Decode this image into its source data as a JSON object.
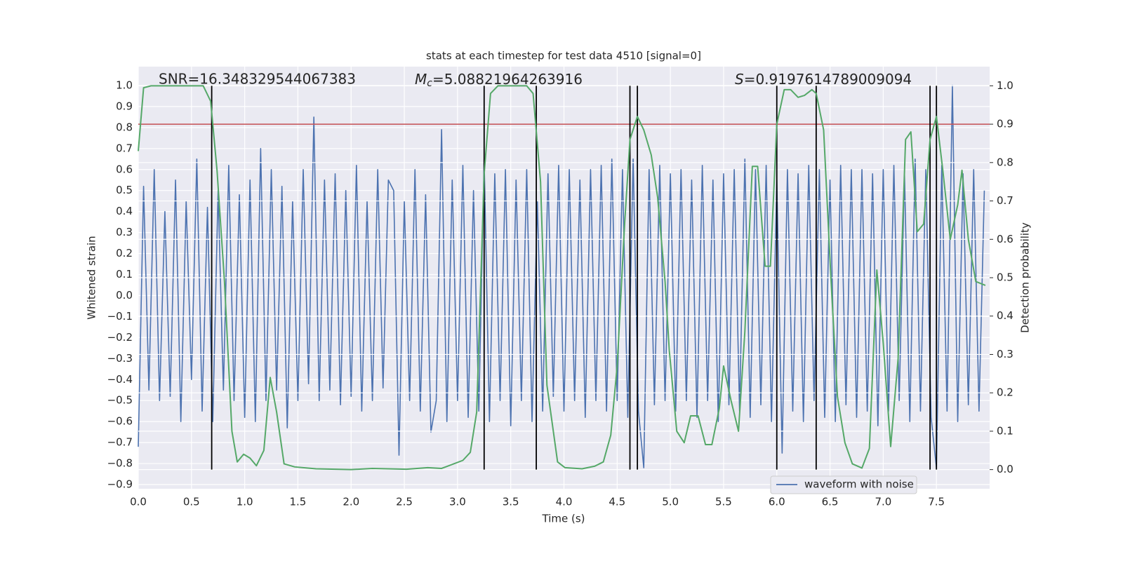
{
  "chart_data": {
    "type": "line",
    "title": "stats at each timestep for test data 4510 [signal=0]",
    "xlabel": "Time (s)",
    "ylabel": "Whitened strain",
    "y2label": "Detection probability",
    "annotations": [
      {
        "text": "SNR=16.348329544067383"
      },
      {
        "symbol": "M",
        "subscript": "c",
        "text": "=5.08821964263916"
      },
      {
        "symbol": "S",
        "text": "=0.9197614789009094"
      }
    ],
    "xlim": [
      0,
      8
    ],
    "ylim": [
      -0.92,
      1.09
    ],
    "y2lim": [
      -0.05,
      1.05
    ],
    "xticks": [
      {
        "value": 0,
        "label": "0.0"
      },
      0.5,
      {
        "value": 1,
        "label": "1.0"
      },
      1.5,
      {
        "value": 2,
        "label": "2.0"
      },
      2.5,
      {
        "value": 3,
        "label": "3.0"
      },
      3.5,
      {
        "value": 4,
        "label": "4.0"
      },
      4.5,
      {
        "value": 5,
        "label": "5.0"
      },
      5.5,
      {
        "value": 6,
        "label": "6.0"
      },
      6.5,
      {
        "value": 7,
        "label": "7.0"
      },
      7.5
    ],
    "yticks": [
      {
        "value": -0.9,
        "label": "−0.9"
      },
      {
        "value": -0.8,
        "label": "−0.8"
      },
      {
        "value": -0.7,
        "label": "−0.7"
      },
      {
        "value": -0.6,
        "label": "−0.6"
      },
      {
        "value": -0.5,
        "label": "−0.5"
      },
      {
        "value": -0.4,
        "label": "−0.4"
      },
      {
        "value": -0.3,
        "label": "−0.3"
      },
      {
        "value": -0.2,
        "label": "−0.2"
      },
      {
        "value": -0.1,
        "label": "−0.1"
      },
      {
        "value": 0,
        "label": "0.0"
      },
      0.1,
      0.2,
      0.3,
      0.4,
      0.5,
      0.6,
      0.7,
      0.8,
      0.9,
      {
        "value": 1,
        "label": "1.0"
      }
    ],
    "y2ticks": [
      {
        "value": 0,
        "label": "0.0"
      },
      0.1,
      0.2,
      0.3,
      0.4,
      0.5,
      0.6,
      0.7,
      0.8,
      0.9,
      {
        "value": 1,
        "label": "1.0"
      }
    ],
    "grid": true,
    "legend": "lower right",
    "series": [
      {
        "name": "waveform with noise",
        "color": "#4c72b0",
        "x": [
          0,
          0.05,
          0.1,
          0.15,
          0.2,
          0.25,
          0.3,
          0.35,
          0.4,
          0.45,
          0.5,
          0.55,
          0.6,
          0.65,
          0.7,
          0.75,
          0.8,
          0.85,
          0.9,
          0.95,
          1,
          1.05,
          1.1,
          1.15,
          1.2,
          1.25,
          1.3,
          1.35,
          1.4,
          1.45,
          1.5,
          1.55,
          1.6,
          1.65,
          1.7,
          1.75,
          1.8,
          1.85,
          1.9,
          1.95,
          2,
          2.05,
          2.1,
          2.15,
          2.2,
          2.25,
          2.3,
          2.35,
          2.4,
          2.45,
          2.5,
          2.55,
          2.6,
          2.65,
          2.7,
          2.75,
          2.8,
          2.85,
          2.9,
          2.95,
          3,
          3.05,
          3.1,
          3.15,
          3.2,
          3.25,
          3.3,
          3.35,
          3.4,
          3.45,
          3.5,
          3.55,
          3.6,
          3.65,
          3.7,
          3.75,
          3.8,
          3.85,
          3.9,
          3.95,
          4,
          4.05,
          4.1,
          4.15,
          4.2,
          4.25,
          4.3,
          4.35,
          4.4,
          4.45,
          4.5,
          4.55,
          4.6,
          4.65,
          4.7,
          4.75,
          4.8,
          4.85,
          4.9,
          4.95,
          5,
          5.05,
          5.1,
          5.15,
          5.2,
          5.25,
          5.3,
          5.35,
          5.4,
          5.45,
          5.5,
          5.55,
          5.6,
          5.65,
          5.7,
          5.75,
          5.8,
          5.85,
          5.9,
          5.95,
          6,
          6.05,
          6.1,
          6.15,
          6.2,
          6.25,
          6.3,
          6.35,
          6.4,
          6.45,
          6.5,
          6.55,
          6.6,
          6.65,
          6.7,
          6.75,
          6.8,
          6.85,
          6.9,
          6.95,
          7,
          7.05,
          7.1,
          7.15,
          7.2,
          7.25,
          7.3,
          7.35,
          7.4,
          7.45,
          7.5,
          7.55,
          7.6,
          7.65,
          7.7,
          7.75,
          7.8,
          7.85,
          7.9,
          7.95
        ],
        "values": [
          -0.72,
          0.52,
          -0.45,
          0.6,
          -0.5,
          0.4,
          -0.48,
          0.55,
          -0.6,
          0.45,
          -0.4,
          0.65,
          -0.55,
          0.42,
          -0.6,
          0.5,
          -0.45,
          0.62,
          -0.5,
          0.48,
          -0.58,
          0.55,
          -0.6,
          0.7,
          -0.5,
          0.6,
          -0.45,
          0.52,
          -0.63,
          0.45,
          -0.5,
          0.6,
          -0.42,
          0.85,
          -0.5,
          0.55,
          -0.45,
          0.58,
          -0.52,
          0.5,
          -0.48,
          0.62,
          -0.55,
          0.45,
          -0.5,
          0.6,
          -0.44,
          0.55,
          0.5,
          -0.76,
          0.45,
          -0.5,
          0.6,
          -0.55,
          0.48,
          -0.65,
          -0.5,
          0.79,
          -0.6,
          0.55,
          -0.5,
          0.62,
          -0.58,
          0.5,
          -0.55,
          0.65,
          -0.6,
          0.58,
          -0.5,
          0.6,
          -0.62,
          0.55,
          -0.5,
          0.6,
          -0.6,
          0.45,
          -0.55,
          0.58,
          -0.48,
          0.62,
          -0.55,
          0.6,
          -0.5,
          0.55,
          -0.58,
          0.6,
          -0.5,
          0.62,
          -0.55,
          0.65,
          -0.5,
          0.6,
          -0.58,
          0.65,
          -0.55,
          -0.82,
          0.6,
          -0.52,
          0.62,
          -0.5,
          0.58,
          -0.55,
          0.6,
          -0.5,
          0.55,
          -0.58,
          0.62,
          -0.5,
          0.55,
          -0.6,
          0.58,
          -0.52,
          0.6,
          -0.55,
          0.65,
          -0.58,
          0.6,
          -0.52,
          0.62,
          -0.6,
          0.55,
          -0.75,
          0.6,
          -0.55,
          0.58,
          -0.6,
          0.62,
          -0.5,
          0.6,
          -0.58,
          0.55,
          -0.6,
          0.62,
          -0.52,
          0.6,
          -0.58,
          0.6,
          -0.55,
          0.58,
          -0.62,
          0.6,
          -0.55,
          0.62,
          -0.5,
          0.58,
          -0.6,
          0.65,
          -0.55,
          0.6,
          -0.58,
          -0.82,
          0.62,
          -0.55,
          1.0,
          -0.6,
          0.58,
          -0.52,
          0.6,
          -0.55,
          0.5
        ]
      },
      {
        "color": "#55a868",
        "axis": "y2",
        "x": [
          0,
          0.05,
          0.12,
          0.61,
          0.68,
          0.74,
          0.81,
          0.88,
          0.93,
          0.99,
          1.05,
          1.11,
          1.18,
          1.24,
          1.3,
          1.37,
          1.47,
          1.67,
          2.0,
          2.2,
          2.52,
          2.72,
          2.85,
          3.05,
          3.12,
          3.18,
          3.25,
          3.31,
          3.38,
          3.65,
          3.71,
          3.78,
          3.84,
          3.94,
          4.01,
          4.17,
          4.29,
          4.37,
          4.44,
          4.5,
          4.57,
          4.62,
          4.69,
          4.75,
          4.82,
          4.88,
          4.95,
          4.99,
          5.06,
          5.13,
          5.19,
          5.26,
          5.33,
          5.39,
          5.46,
          5.5,
          5.57,
          5.64,
          5.7,
          5.77,
          5.82,
          5.89,
          5.94,
          6.0,
          6.07,
          6.13,
          6.2,
          6.26,
          6.33,
          6.37,
          6.44,
          6.51,
          6.57,
          6.64,
          6.71,
          6.8,
          6.87,
          6.94,
          7.0,
          7.07,
          7.14,
          7.21,
          7.26,
          7.32,
          7.38,
          7.44,
          7.5,
          7.56,
          7.63,
          7.7,
          7.74,
          7.8,
          7.87,
          7.96
        ],
        "values": [
          0.83,
          0.995,
          1.0,
          1.0,
          0.96,
          0.78,
          0.49,
          0.1,
          0.02,
          0.04,
          0.03,
          0.01,
          0.05,
          0.24,
          0.15,
          0.015,
          0.007,
          0.002,
          0,
          0.003,
          0.001,
          0.005,
          0.003,
          0.024,
          0.045,
          0.15,
          0.77,
          0.98,
          1.0,
          1.0,
          0.98,
          0.75,
          0.22,
          0.02,
          0.005,
          0.002,
          0.009,
          0.02,
          0.09,
          0.27,
          0.64,
          0.86,
          0.92,
          0.885,
          0.82,
          0.71,
          0.49,
          0.31,
          0.1,
          0.07,
          0.14,
          0.14,
          0.065,
          0.065,
          0.16,
          0.27,
          0.18,
          0.1,
          0.36,
          0.79,
          0.79,
          0.53,
          0.53,
          0.9,
          0.99,
          0.99,
          0.97,
          0.975,
          0.99,
          0.98,
          0.885,
          0.49,
          0.19,
          0.07,
          0.015,
          0.004,
          0.055,
          0.52,
          0.33,
          0.06,
          0.29,
          0.86,
          0.88,
          0.62,
          0.64,
          0.86,
          0.92,
          0.78,
          0.6,
          0.69,
          0.78,
          0.6,
          0.49,
          0.48
        ]
      }
    ],
    "threshold": {
      "value": 0.9,
      "axis": "y2",
      "color": "#c44e52"
    },
    "vlines": {
      "x": [
        0.69,
        3.25,
        3.74,
        4.62,
        4.69,
        6.0,
        6.37,
        7.44,
        7.5
      ],
      "y2range": [
        0,
        1
      ],
      "color": "#000000"
    }
  }
}
